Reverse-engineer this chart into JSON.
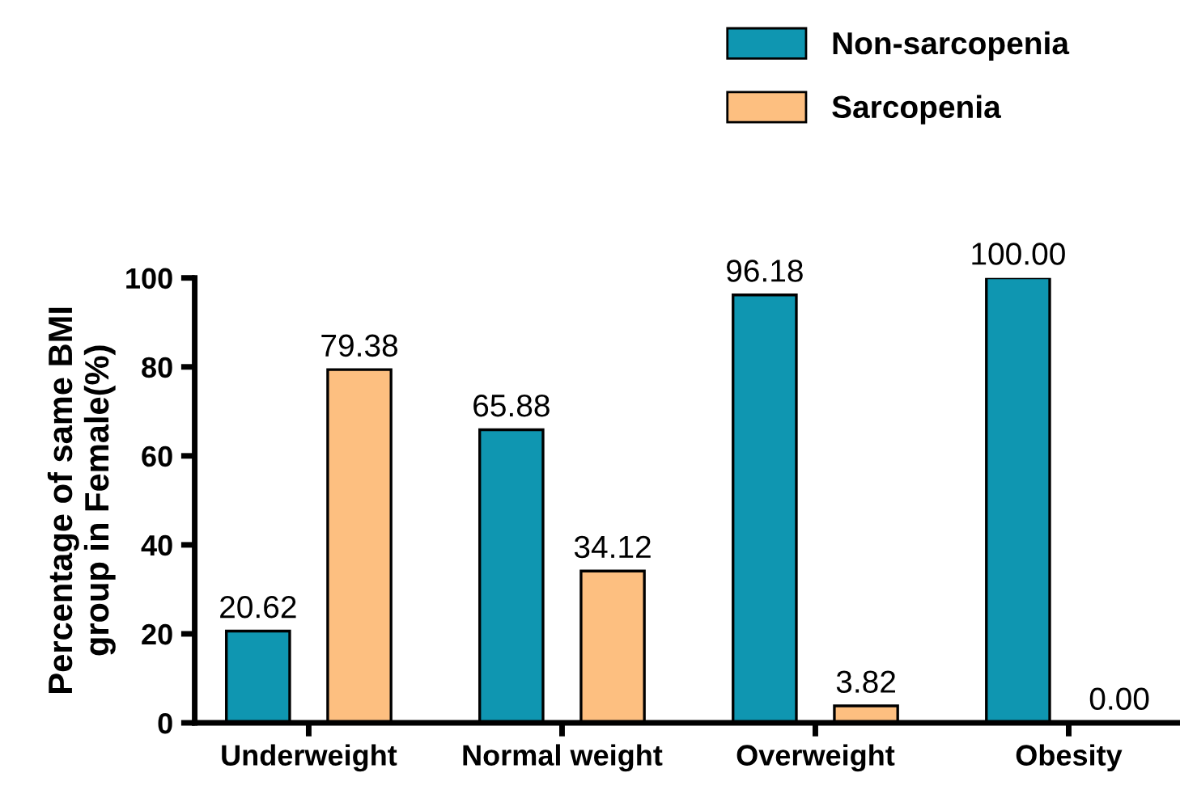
{
  "chart_data": {
    "type": "bar",
    "ylabel": "Percentage of same BMI\ngroup in Female(%)",
    "categories": [
      "Underweight",
      "Normal weight",
      "Overweight",
      "Obesity"
    ],
    "series": [
      {
        "name": "Non-sarcopenia",
        "color": "#0f96b1",
        "values": [
          20.62,
          65.88,
          96.18,
          100.0
        ],
        "value_labels": [
          "20.62",
          "65.88",
          "96.18",
          "100.00"
        ]
      },
      {
        "name": "Sarcopenia",
        "color": "#fdbf80",
        "values": [
          79.38,
          34.12,
          3.82,
          0.0
        ],
        "value_labels": [
          "79.38",
          "34.12",
          "3.82",
          "0.00"
        ]
      }
    ],
    "ylim": [
      0,
      100
    ],
    "yticks": [
      0,
      20,
      40,
      60,
      80,
      100
    ],
    "grid": false,
    "legend": "top right"
  }
}
